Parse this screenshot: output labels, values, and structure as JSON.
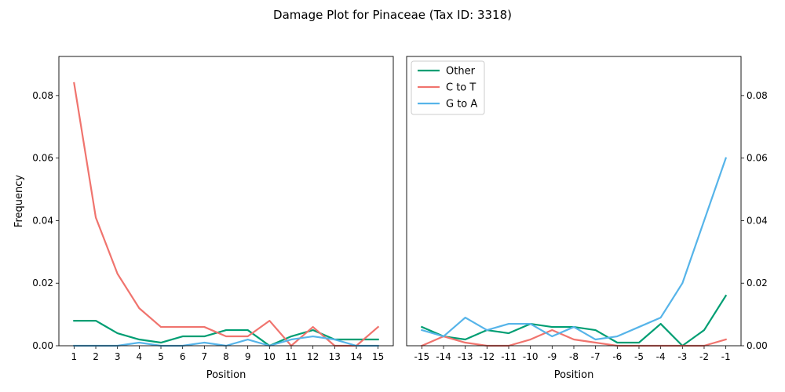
{
  "figure_title": "Damage Plot for Pinaceae (Tax ID: 3318)",
  "colors": {
    "other": "#009e73",
    "c_to_t": "#f0746e",
    "g_to_a": "#56b4e9"
  },
  "chart_data": [
    {
      "type": "line",
      "panel": "left",
      "xlabel": "Position",
      "ylabel": "Frequency",
      "x": [
        "1",
        "2",
        "3",
        "4",
        "5",
        "6",
        "7",
        "8",
        "9",
        "10",
        "11",
        "12",
        "13",
        "14",
        "15"
      ],
      "ylim": [
        0,
        0.0925
      ],
      "yticks": [
        "0.00",
        "0.02",
        "0.04",
        "0.06",
        "0.08"
      ],
      "yaxis_side": "left",
      "grid": false,
      "series": [
        {
          "name": "Other",
          "color": "#009e73",
          "values": [
            0.008,
            0.008,
            0.004,
            0.002,
            0.001,
            0.003,
            0.003,
            0.005,
            0.005,
            0.0,
            0.003,
            0.005,
            0.002,
            0.002,
            0.002
          ]
        },
        {
          "name": "C to T",
          "color": "#f0746e",
          "values": [
            0.084,
            0.041,
            0.023,
            0.012,
            0.006,
            0.006,
            0.006,
            0.003,
            0.003,
            0.008,
            0.0,
            0.006,
            0.0,
            0.0,
            0.006
          ]
        },
        {
          "name": "G to A",
          "color": "#56b4e9",
          "values": [
            0.0,
            0.0,
            0.0,
            0.001,
            0.0,
            0.0,
            0.001,
            0.0,
            0.002,
            0.0,
            0.002,
            0.003,
            0.002,
            0.0,
            0.0
          ]
        }
      ]
    },
    {
      "type": "line",
      "panel": "right",
      "xlabel": "Position",
      "ylabel": "",
      "x": [
        "-15",
        "-14",
        "-13",
        "-12",
        "-11",
        "-10",
        "-9",
        "-8",
        "-7",
        "-6",
        "-5",
        "-4",
        "-3",
        "-2",
        "-1"
      ],
      "ylim": [
        0,
        0.0925
      ],
      "yticks": [
        "0.00",
        "0.02",
        "0.04",
        "0.06",
        "0.08"
      ],
      "yaxis_side": "right",
      "grid": false,
      "legend_position": "top-left",
      "series": [
        {
          "name": "Other",
          "color": "#009e73",
          "values": [
            0.006,
            0.003,
            0.002,
            0.005,
            0.004,
            0.007,
            0.006,
            0.006,
            0.005,
            0.001,
            0.001,
            0.007,
            0.0,
            0.005,
            0.016
          ]
        },
        {
          "name": "C to T",
          "color": "#f0746e",
          "values": [
            0.0,
            0.003,
            0.001,
            0.0,
            0.0,
            0.002,
            0.005,
            0.002,
            0.001,
            0.0,
            0.0,
            0.0,
            0.0,
            0.0,
            0.002
          ]
        },
        {
          "name": "G to A",
          "color": "#56b4e9",
          "values": [
            0.005,
            0.003,
            0.009,
            0.005,
            0.007,
            0.007,
            0.003,
            0.006,
            0.002,
            0.003,
            0.006,
            0.009,
            0.02,
            0.04,
            0.06
          ]
        }
      ]
    }
  ]
}
